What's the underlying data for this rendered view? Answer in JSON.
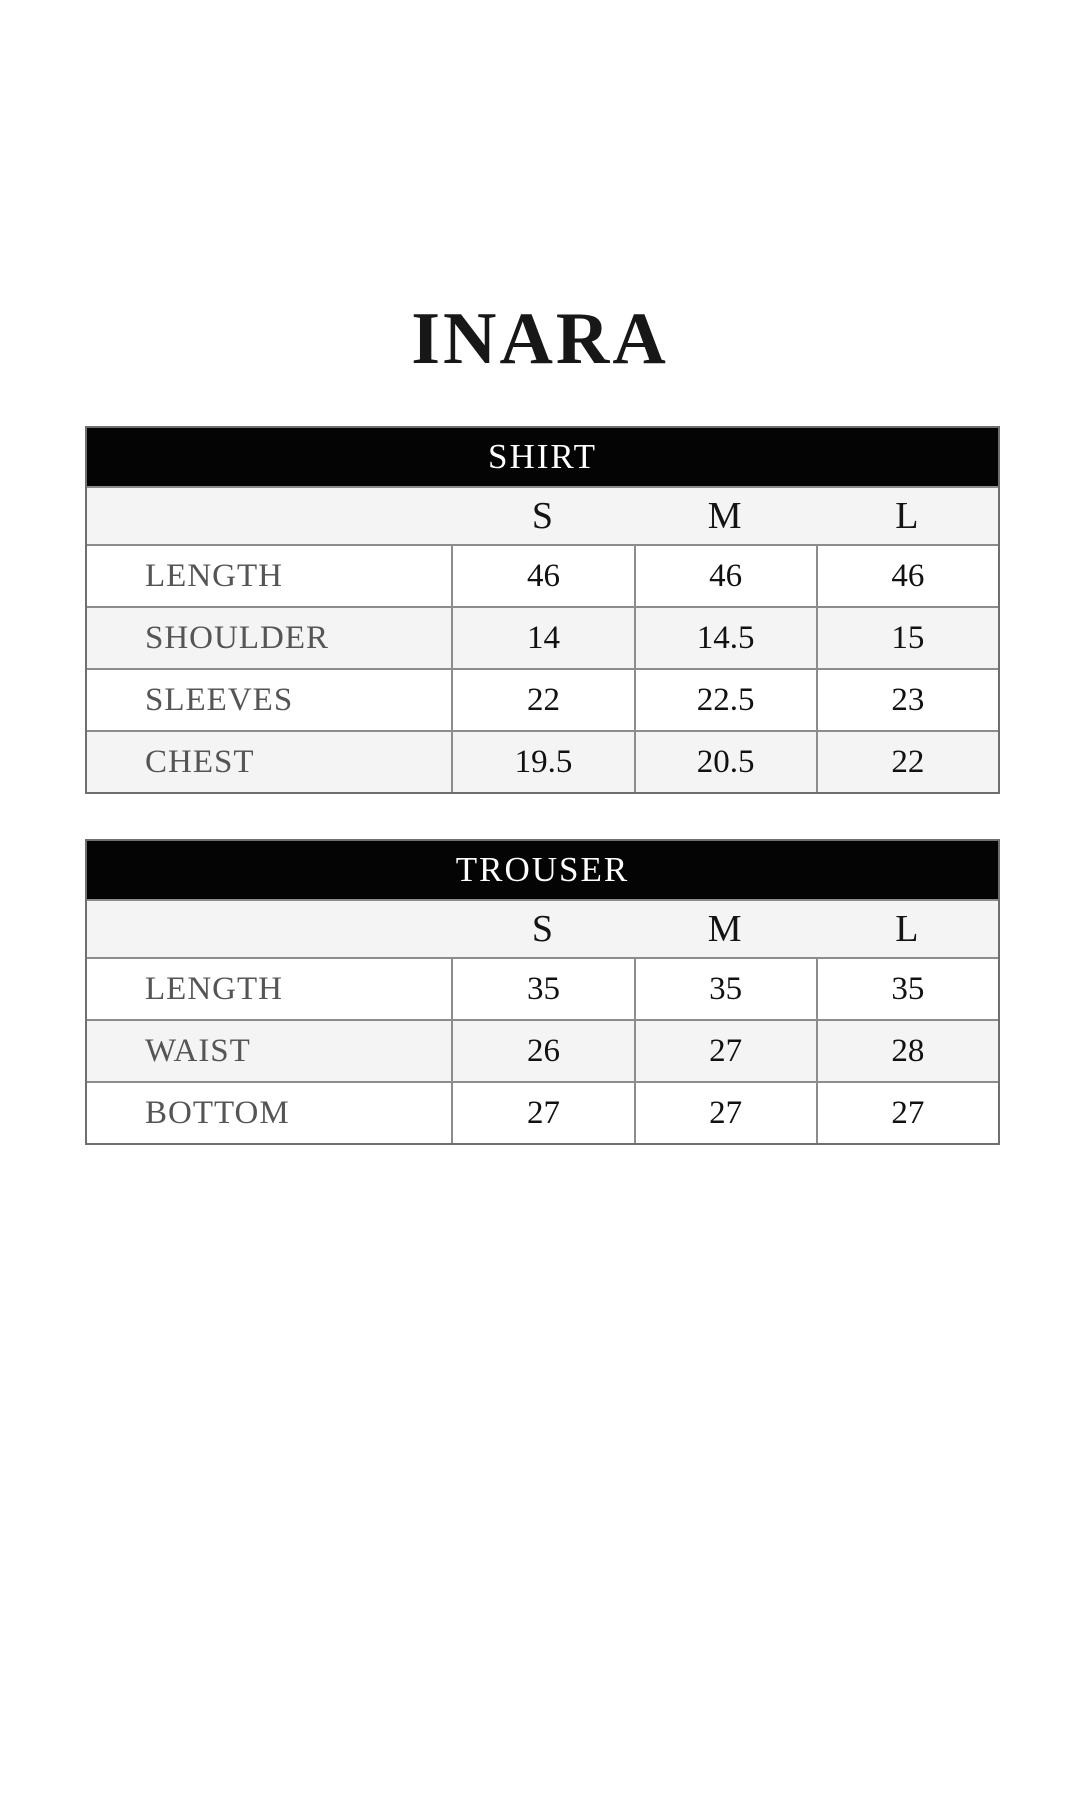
{
  "page": {
    "title": "INARA"
  },
  "colors": {
    "background": "#ffffff",
    "header_band": "#040404",
    "header_band_text": "#ffffff",
    "row_shade": "#f4f4f4",
    "grid_line": "#8c8c8c",
    "label_text": "#555555",
    "value_text": "#121212",
    "title_text": "#171717"
  },
  "chart_data": [
    {
      "type": "table",
      "title": "SHIRT",
      "sizes": [
        "S",
        "M",
        "L"
      ],
      "rows": [
        {
          "label": "LENGTH",
          "values": [
            "46",
            "46",
            "46"
          ]
        },
        {
          "label": "SHOULDER",
          "values": [
            "14",
            "14.5",
            "15"
          ]
        },
        {
          "label": "SLEEVES",
          "values": [
            "22",
            "22.5",
            "23"
          ]
        },
        {
          "label": "CHEST",
          "values": [
            "19.5",
            "20.5",
            "22"
          ]
        }
      ]
    },
    {
      "type": "table",
      "title": "TROUSER",
      "sizes": [
        "S",
        "M",
        "L"
      ],
      "rows": [
        {
          "label": "LENGTH",
          "values": [
            "35",
            "35",
            "35"
          ]
        },
        {
          "label": "WAIST",
          "values": [
            "26",
            "27",
            "28"
          ]
        },
        {
          "label": "BOTTOM",
          "values": [
            "27",
            "27",
            "27"
          ]
        }
      ]
    }
  ]
}
